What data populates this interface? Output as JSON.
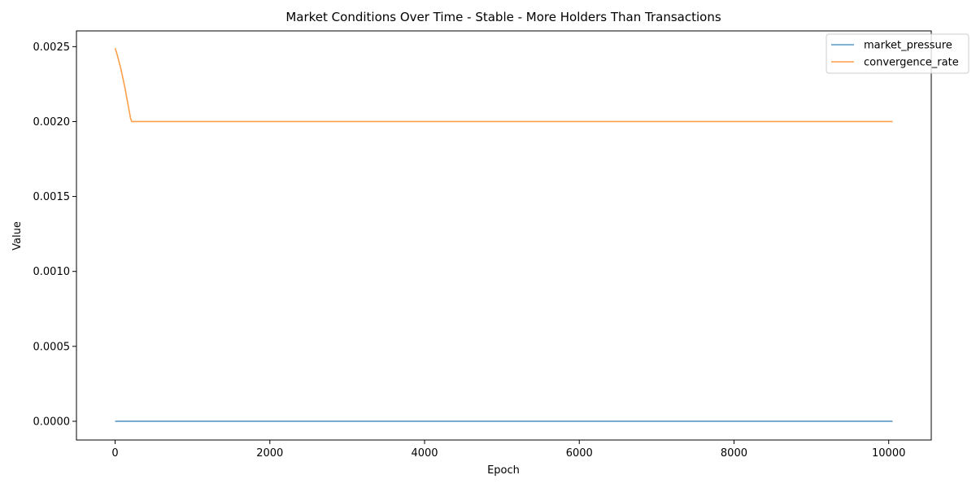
{
  "chart_data": {
    "type": "line",
    "title": "Market Conditions Over Time - Stable - More Holders Than Transactions",
    "xlabel": "Epoch",
    "ylabel": "Value",
    "xlim": [
      -500,
      10550
    ],
    "ylim": [
      -0.000125,
      0.002605
    ],
    "xticks": [
      0,
      2000,
      4000,
      6000,
      8000,
      10000
    ],
    "xtick_labels": [
      "0",
      "2000",
      "4000",
      "6000",
      "8000",
      "10000"
    ],
    "yticks": [
      0.0,
      0.0005,
      0.001,
      0.0015,
      0.002,
      0.0025
    ],
    "ytick_labels": [
      "0.0000",
      "0.0005",
      "0.0010",
      "0.0015",
      "0.0020",
      "0.0025"
    ],
    "grid": false,
    "legend_position": "top-right",
    "series": [
      {
        "name": "market_pressure",
        "color": "#1f77b4",
        "x": [
          0,
          10050
        ],
        "y": [
          0.0,
          0.0
        ]
      },
      {
        "name": "convergence_rate",
        "color": "#ff7f0e",
        "x": [
          0,
          25,
          50,
          75,
          100,
          125,
          150,
          175,
          200,
          215,
          10050
        ],
        "y": [
          0.00249,
          0.00245,
          0.0024,
          0.00235,
          0.00229,
          0.00223,
          0.00216,
          0.00209,
          0.00202,
          0.002,
          0.002
        ]
      }
    ]
  }
}
